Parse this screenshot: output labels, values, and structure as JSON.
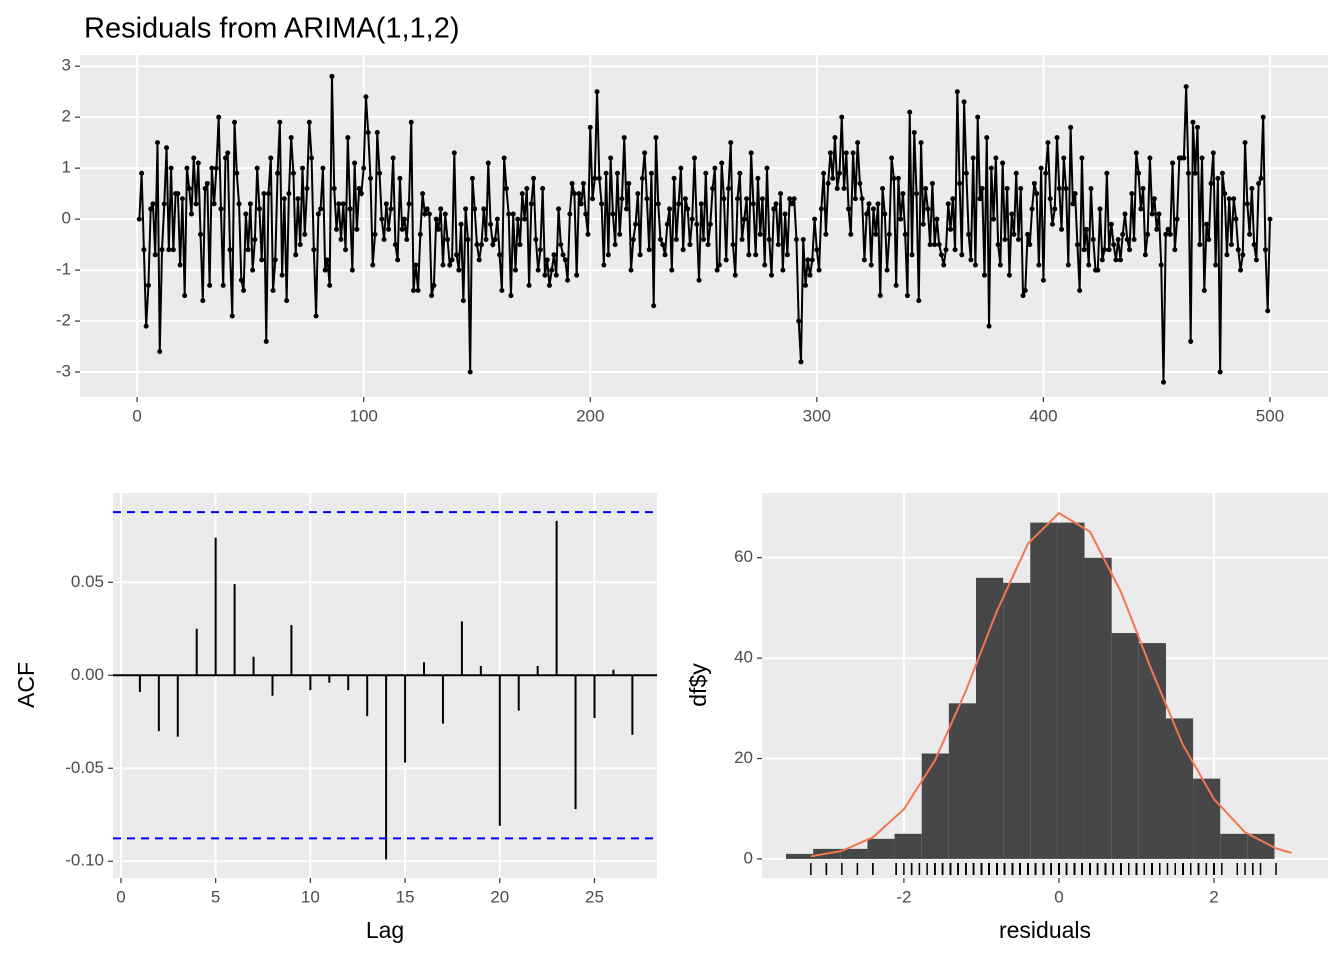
{
  "chart_data": [
    {
      "type": "line",
      "title": "Residuals from ARIMA(1,1,2)",
      "color": "#000000",
      "grid": true,
      "x": [
        1,
        2,
        3,
        4,
        5,
        6,
        7,
        8,
        9,
        10,
        11,
        12,
        13,
        14,
        15,
        16,
        17,
        18,
        19,
        20,
        21,
        22,
        23,
        24,
        25,
        26,
        27,
        28,
        29,
        30,
        31,
        32,
        33,
        34,
        35,
        36,
        37,
        38,
        39,
        40,
        41,
        42,
        43,
        44,
        45,
        46,
        47,
        48,
        49,
        50,
        51,
        52,
        53,
        54,
        55,
        56,
        57,
        58,
        59,
        60,
        61,
        62,
        63,
        64,
        65,
        66,
        67,
        68,
        69,
        70,
        71,
        72,
        73,
        74,
        75,
        76,
        77,
        78,
        79,
        80,
        81,
        82,
        83,
        84,
        85,
        86,
        87,
        88,
        89,
        90,
        91,
        92,
        93,
        94,
        95,
        96,
        97,
        98,
        99,
        100,
        101,
        102,
        103,
        104,
        105,
        106,
        107,
        108,
        109,
        110,
        111,
        112,
        113,
        114,
        115,
        116,
        117,
        118,
        119,
        120,
        121,
        122,
        123,
        124,
        125,
        126,
        127,
        128,
        129,
        130,
        131,
        132,
        133,
        134,
        135,
        136,
        137,
        138,
        139,
        140,
        141,
        142,
        143,
        144,
        145,
        146,
        147,
        148,
        149,
        150,
        151,
        152,
        153,
        154,
        155,
        156,
        157,
        158,
        159,
        160,
        161,
        162,
        163,
        164,
        165,
        166,
        167,
        168,
        169,
        170,
        171,
        172,
        173,
        174,
        175,
        176,
        177,
        178,
        179,
        180,
        181,
        182,
        183,
        184,
        185,
        186,
        187,
        188,
        189,
        190,
        191,
        192,
        193,
        194,
        195,
        196,
        197,
        198,
        199,
        200,
        201,
        202,
        203,
        204,
        205,
        206,
        207,
        208,
        209,
        210,
        211,
        212,
        213,
        214,
        215,
        216,
        217,
        218,
        219,
        220,
        221,
        222,
        223,
        224,
        225,
        226,
        227,
        228,
        229,
        230,
        231,
        232,
        233,
        234,
        235,
        236,
        237,
        238,
        239,
        240,
        241,
        242,
        243,
        244,
        245,
        246,
        247,
        248,
        249,
        250,
        251,
        252,
        253,
        254,
        255,
        256,
        257,
        258,
        259,
        260,
        261,
        262,
        263,
        264,
        265,
        266,
        267,
        268,
        269,
        270,
        271,
        272,
        273,
        274,
        275,
        276,
        277,
        278,
        279,
        280,
        281,
        282,
        283,
        284,
        285,
        286,
        287,
        288,
        289,
        290,
        291,
        292,
        293,
        294,
        295,
        296,
        297,
        298,
        299,
        300,
        301,
        302,
        303,
        304,
        305,
        306,
        307,
        308,
        309,
        310,
        311,
        312,
        313,
        314,
        315,
        316,
        317,
        318,
        319,
        320,
        321,
        322,
        323,
        324,
        325,
        326,
        327,
        328,
        329,
        330,
        331,
        332,
        333,
        334,
        335,
        336,
        337,
        338,
        339,
        340,
        341,
        342,
        343,
        344,
        345,
        346,
        347,
        348,
        349,
        350,
        351,
        352,
        353,
        354,
        355,
        356,
        357,
        358,
        359,
        360,
        361,
        362,
        363,
        364,
        365,
        366,
        367,
        368,
        369,
        370,
        371,
        372,
        373,
        374,
        375,
        376,
        377,
        378,
        379,
        380,
        381,
        382,
        383,
        384,
        385,
        386,
        387,
        388,
        389,
        390,
        391,
        392,
        393,
        394,
        395,
        396,
        397,
        398,
        399,
        400,
        401,
        402,
        403,
        404,
        405,
        406,
        407,
        408,
        409,
        410,
        411,
        412,
        413,
        414,
        415,
        416,
        417,
        418,
        419,
        420,
        421,
        422,
        423,
        424,
        425,
        426,
        427,
        428,
        429,
        430,
        431,
        432,
        433,
        434,
        435,
        436,
        437,
        438,
        439,
        440,
        441,
        442,
        443,
        444,
        445,
        446,
        447,
        448,
        449,
        450,
        451,
        452,
        453,
        454,
        455,
        456,
        457,
        458,
        459,
        460,
        461,
        462,
        463,
        464,
        465,
        466,
        467,
        468,
        469,
        470,
        471,
        472,
        473,
        474,
        475,
        476,
        477,
        478,
        479,
        480,
        481,
        482,
        483,
        484,
        485,
        486,
        487,
        488,
        489,
        490,
        491,
        492,
        493,
        494,
        495,
        496,
        497,
        498,
        499,
        500
      ],
      "values": [
        0.0,
        0.9,
        -0.6,
        -2.1,
        -1.3,
        0.2,
        0.3,
        -0.7,
        1.5,
        -2.6,
        -0.6,
        0.3,
        1.4,
        -0.6,
        1.0,
        -0.6,
        0.5,
        0.5,
        -0.9,
        0.4,
        -1.5,
        1.0,
        0.6,
        0.1,
        1.2,
        0.3,
        1.1,
        -0.3,
        -1.6,
        0.6,
        0.7,
        -1.3,
        1.0,
        0.3,
        1.0,
        2.0,
        0.2,
        -1.3,
        1.2,
        1.3,
        -0.6,
        -1.9,
        1.9,
        0.9,
        0.3,
        -1.2,
        -1.4,
        0.1,
        -0.6,
        0.3,
        -1.0,
        -0.4,
        1.0,
        0.2,
        -0.8,
        0.5,
        -2.4,
        0.5,
        1.2,
        -1.4,
        -0.8,
        0.9,
        1.9,
        -1.1,
        0.4,
        -1.6,
        0.5,
        1.6,
        0.9,
        -0.7,
        0.4,
        -0.5,
        1.0,
        -0.3,
        0.6,
        1.9,
        1.2,
        -0.6,
        -1.9,
        0.1,
        0.2,
        1.0,
        -1.0,
        -0.8,
        -1.3,
        2.8,
        0.6,
        -0.2,
        0.3,
        -0.4,
        0.3,
        -0.6,
        1.6,
        0.2,
        -1.0,
        1.1,
        -0.2,
        0.6,
        0.5,
        1.0,
        2.4,
        1.7,
        0.8,
        -0.9,
        -0.3,
        1.7,
        0.9,
        0.0,
        -0.4,
        0.3,
        -0.2,
        0.2,
        1.2,
        -0.5,
        -0.8,
        0.8,
        -0.2,
        0.0,
        -0.4,
        0.3,
        1.9,
        -1.4,
        -0.9,
        -1.4,
        -0.3,
        0.5,
        0.1,
        0.2,
        0.1,
        -1.5,
        -1.3,
        0.0,
        -0.2,
        0.2,
        -0.9,
        0.1,
        -0.4,
        -0.9,
        -0.8,
        1.3,
        -0.7,
        -1.0,
        -0.1,
        -1.6,
        0.2,
        -0.4,
        -3.0,
        0.8,
        0.2,
        -0.5,
        -0.8,
        -0.5,
        0.2,
        -0.4,
        1.1,
        -0.1,
        -0.5,
        -0.4,
        0.0,
        -0.7,
        -1.4,
        1.2,
        0.6,
        0.1,
        -1.5,
        0.1,
        -1.0,
        0.0,
        -0.5,
        0.5,
        0.0,
        0.6,
        -1.3,
        0.3,
        0.8,
        -0.4,
        -1.0,
        -0.6,
        0.6,
        -1.1,
        -0.8,
        -1.3,
        -1.0,
        -0.7,
        -1.1,
        0.2,
        -0.5,
        -0.7,
        -0.8,
        -1.2,
        0.1,
        0.7,
        0.5,
        -1.1,
        0.5,
        0.3,
        0.7,
        0.1,
        -0.3,
        1.8,
        0.4,
        0.8,
        2.5,
        0.8,
        0.3,
        -0.9,
        0.9,
        -0.7,
        1.2,
        0.1,
        -0.5,
        0.9,
        -0.3,
        0.4,
        1.6,
        0.2,
        0.7,
        -1.0,
        -0.4,
        -0.1,
        0.5,
        -0.7,
        0.8,
        1.3,
        0.4,
        -0.6,
        0.9,
        -1.7,
        1.6,
        0.3,
        -0.4,
        -0.5,
        -0.7,
        -0.1,
        0.2,
        -1.0,
        0.8,
        -0.4,
        0.3,
        1.0,
        -0.6,
        0.4,
        0.2,
        -0.5,
        0.0,
        1.2,
        -0.1,
        -1.2,
        0.3,
        -0.4,
        0.9,
        -0.5,
        -0.1,
        0.6,
        1.0,
        -1.0,
        -0.9,
        1.1,
        0.4,
        -0.8,
        0.6,
        1.5,
        -0.5,
        -1.1,
        0.4,
        0.9,
        -0.4,
        0.0,
        0.4,
        -0.7,
        1.3,
        0.3,
        -0.7,
        0.8,
        -0.3,
        0.4,
        -0.9,
        1.0,
        -0.4,
        -1.1,
        0.2,
        0.3,
        -0.5,
        0.5,
        -1.0,
        0.1,
        -0.7,
        0.4,
        0.3,
        0.4,
        -0.4,
        -2.0,
        -2.8,
        -0.4,
        -1.3,
        -0.8,
        -1.1,
        -0.8,
        0.0,
        -0.6,
        -1.0,
        0.2,
        0.9,
        -0.3,
        0.7,
        1.3,
        0.8,
        1.6,
        0.6,
        0.9,
        2.0,
        0.6,
        1.3,
        0.2,
        -0.3,
        1.3,
        0.4,
        1.5,
        0.7,
        0.4,
        -0.8,
        0.1,
        0.3,
        -0.9,
        0.2,
        -0.3,
        0.3,
        -1.5,
        0.6,
        0.1,
        -1.0,
        -0.3,
        1.2,
        0.8,
        -1.3,
        0.8,
        0.0,
        0.5,
        -0.3,
        -1.5,
        2.1,
        -0.7,
        1.7,
        0.5,
        -1.6,
        1.5,
        -0.1,
        0.6,
        0.2,
        -0.5,
        0.7,
        -0.5,
        0.0,
        -0.5,
        -0.7,
        -0.9,
        -0.6,
        0.3,
        -0.2,
        0.4,
        -0.6,
        2.5,
        0.7,
        -0.7,
        2.3,
        0.9,
        -0.3,
        -0.8,
        1.2,
        -0.9,
        2.0,
        0.4,
        0.6,
        -1.1,
        1.6,
        -2.1,
        1.0,
        0.0,
        1.2,
        -0.5,
        -0.9,
        1.1,
        -0.4,
        0.6,
        -1.1,
        0.1,
        -0.3,
        0.9,
        -0.4,
        0.6,
        -1.5,
        -1.4,
        -0.3,
        -0.5,
        0.2,
        0.7,
        0.5,
        -0.9,
        1.0,
        -1.2,
        0.9,
        1.5,
        0.4,
        -0.1,
        0.2,
        1.6,
        0.6,
        -0.2,
        1.2,
        0.6,
        -0.9,
        1.8,
        0.3,
        0.5,
        -0.5,
        -1.4,
        1.2,
        -0.6,
        -0.2,
        -0.9,
        0.6,
        -0.4,
        -1.0,
        -1.0,
        0.2,
        -0.8,
        -0.6,
        0.9,
        -0.6,
        -0.1,
        -0.5,
        -0.8,
        -0.4,
        -0.8,
        -0.3,
        0.1,
        -0.4,
        -0.6,
        0.5,
        -0.4,
        1.3,
        0.9,
        0.2,
        0.6,
        -0.7,
        -0.3,
        1.2,
        0.1,
        0.4,
        -0.2,
        0.1,
        -0.9,
        -3.2,
        -0.3,
        -0.2,
        -0.3,
        1.1,
        -0.6,
        0.0,
        1.2,
        1.2,
        1.2,
        2.6,
        0.9,
        -2.4,
        1.9,
        0.9,
        1.8,
        -0.5,
        1.2,
        -1.4,
        -0.1,
        -0.4,
        0.7,
        1.3,
        -0.9,
        0.8,
        -3.0,
        0.9,
        0.5,
        -0.7,
        0.4,
        -0.5,
        0.4,
        0.0,
        -0.6,
        -1.0,
        -0.7,
        1.5,
        0.3,
        -0.3,
        0.6,
        -0.5,
        -0.8,
        0.7,
        0.8,
        2.0,
        -0.6,
        -1.8,
        0.0
      ],
      "xlim": [
        -25.2,
        525.6
      ],
      "xticks": [
        0,
        100,
        200,
        300,
        400,
        500
      ],
      "ylim": [
        -3.49,
        3.22
      ],
      "yticks": [
        -3,
        -2,
        -1,
        0,
        1,
        2,
        3
      ]
    },
    {
      "type": "acf",
      "x_label": "Lag",
      "y_label": "ACF",
      "color": "#000000",
      "grid": true,
      "x": [
        1,
        2,
        3,
        4,
        5,
        6,
        7,
        8,
        9,
        10,
        11,
        12,
        13,
        14,
        15,
        16,
        17,
        18,
        19,
        20,
        21,
        22,
        23,
        24,
        25,
        26,
        27
      ],
      "values": [
        -0.009,
        -0.03,
        -0.033,
        0.025,
        0.074,
        0.049,
        0.01,
        -0.011,
        0.027,
        -0.008,
        -0.004,
        -0.008,
        -0.022,
        -0.099,
        -0.047,
        0.007,
        -0.026,
        0.029,
        0.005,
        -0.081,
        -0.019,
        0.005,
        0.083,
        -0.072,
        -0.023,
        0.003,
        -0.032
      ],
      "conf_limits": [
        0.0877,
        -0.0877
      ],
      "conf_color": "#0000ff",
      "xlim": [
        -0.42,
        28.3
      ],
      "xticks": [
        0,
        5,
        10,
        15,
        20,
        25
      ],
      "ylim": [
        -0.109,
        0.098
      ],
      "yticks": [
        {
          "value": -0.1,
          "label": "-0.10"
        },
        -0.05,
        {
          "value": 0,
          "label": "0.00"
        },
        0.05
      ]
    },
    {
      "type": "histogram",
      "x_label": "residuals",
      "y_label": "df$y",
      "color": "#474747",
      "grid": true,
      "bins": [
        -3.52,
        -3.17,
        -2.82,
        -2.47,
        -2.12,
        -1.77,
        -1.42,
        -1.07,
        -0.72,
        -0.37,
        -0.02,
        0.33,
        0.68,
        1.03,
        1.38,
        1.73,
        2.08,
        2.43,
        2.78
      ],
      "counts": [
        1,
        2,
        2,
        4,
        5,
        21,
        31,
        56,
        55,
        67,
        67,
        60,
        45,
        43,
        28,
        16,
        5,
        5
      ],
      "curve": {
        "color": "#f4764f",
        "x": [
          -3.2,
          -2.8,
          -2.4,
          -2.0,
          -1.6,
          -1.2,
          -0.8,
          -0.4,
          0,
          0.4,
          0.8,
          1.2,
          1.6,
          2.0,
          2.4,
          2.8,
          3.0
        ],
        "y": [
          0.52,
          1.6,
          4.3,
          9.9,
          19.6,
          33.5,
          49.4,
          62.8,
          68.9,
          65.2,
          53.2,
          37.4,
          22.7,
          11.9,
          5.3,
          2.1,
          1.2
        ]
      },
      "xlim": [
        -3.83,
        3.47
      ],
      "xticks": [
        -2,
        0,
        2
      ],
      "ylim": [
        -3.8,
        72.9
      ],
      "yticks": [
        0,
        20,
        40,
        60
      ]
    }
  ]
}
